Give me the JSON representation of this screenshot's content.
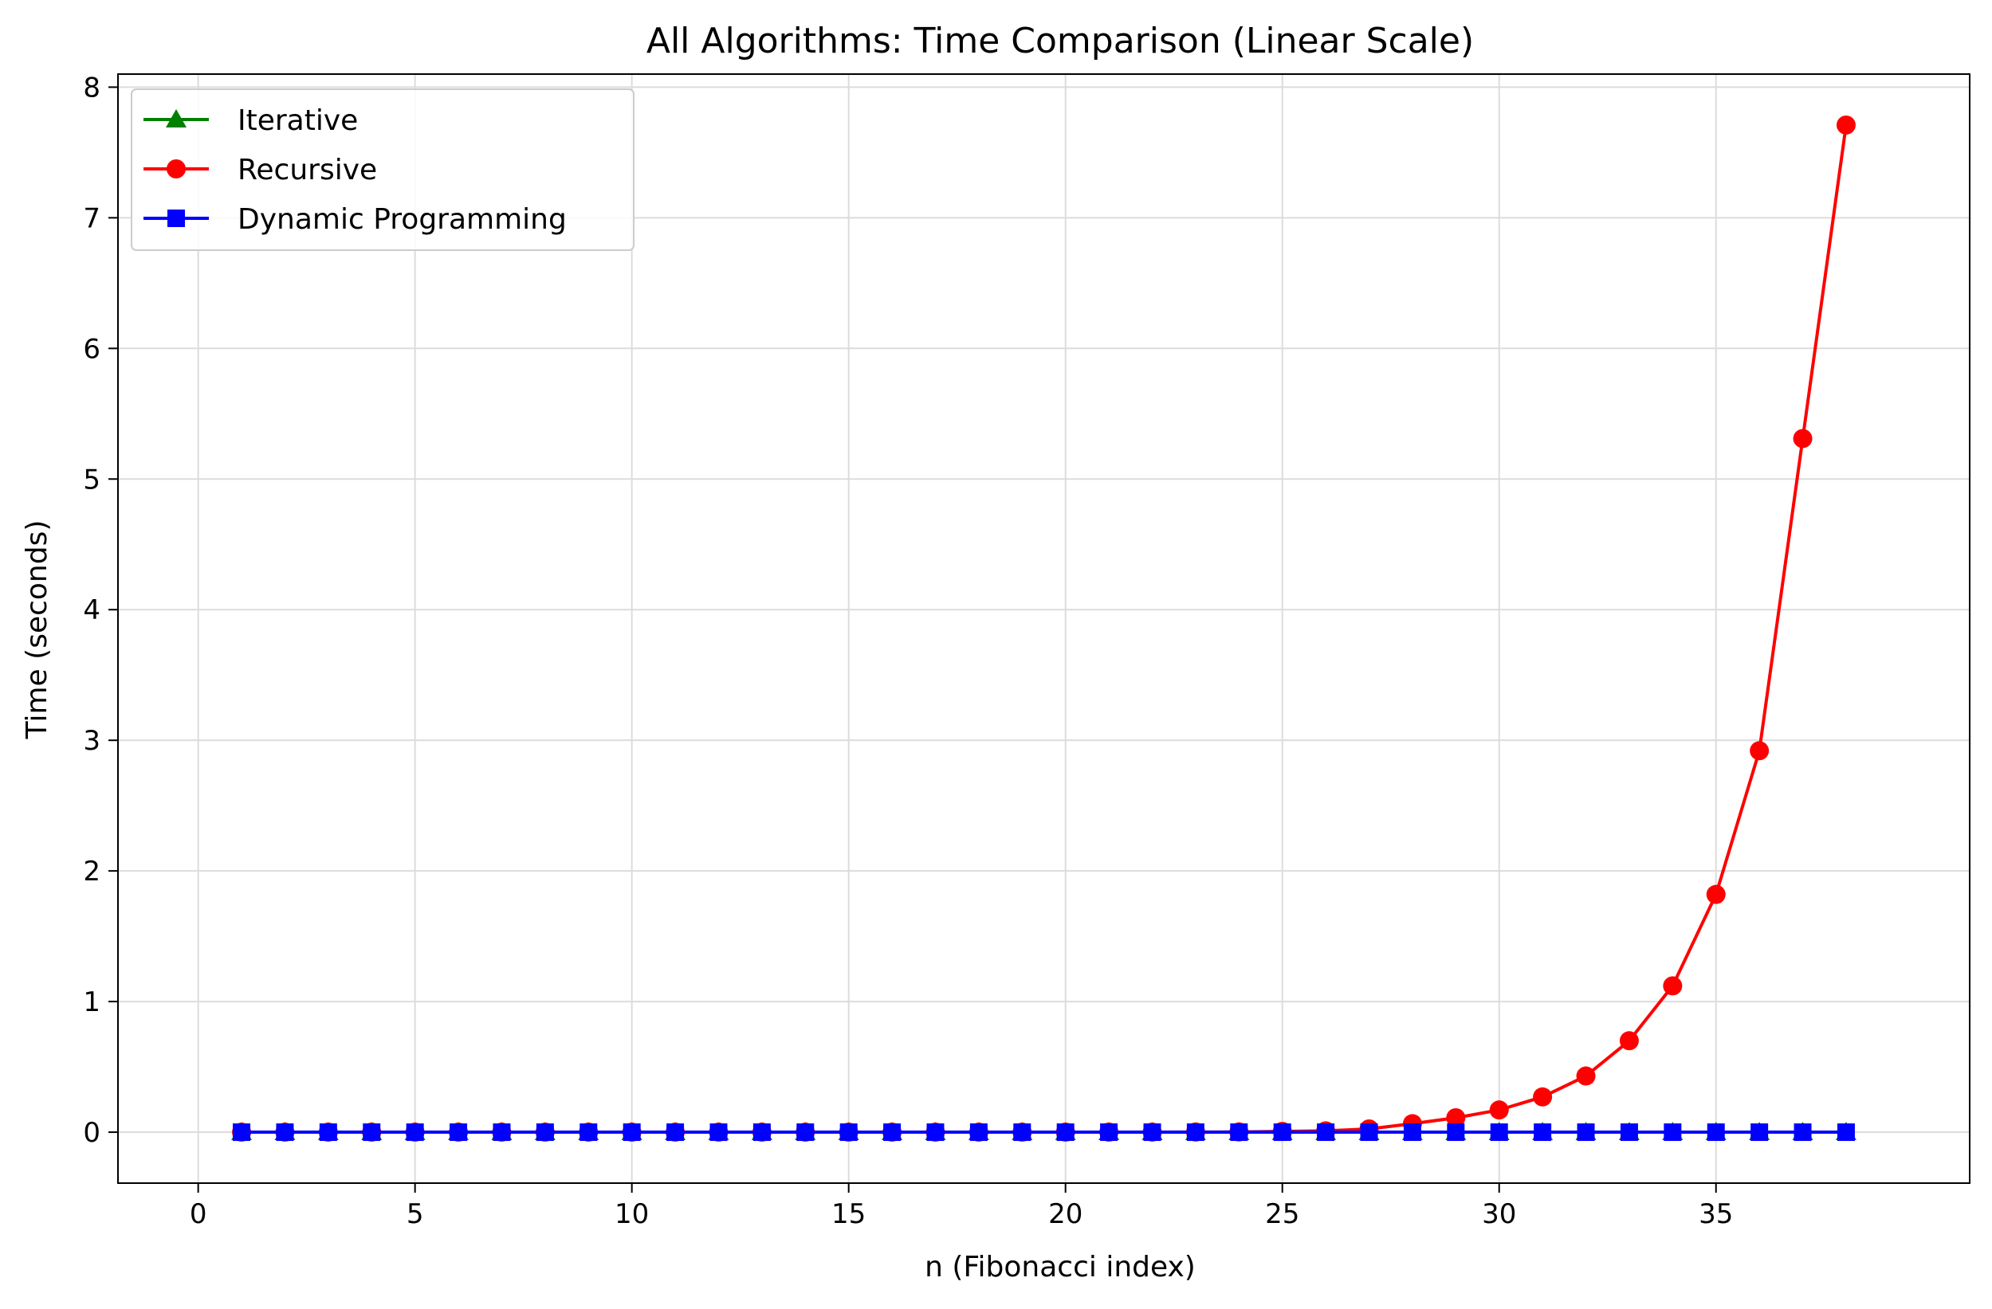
{
  "chart_data": {
    "type": "line",
    "title": "All Algorithms: Time Comparison (Linear Scale)",
    "xlabel": "n (Fibonacci index)",
    "ylabel": "Time (seconds)",
    "xlim": [
      -1.85,
      40.85
    ],
    "ylim": [
      -0.39,
      8.1
    ],
    "xticks": [
      0,
      5,
      10,
      15,
      20,
      25,
      30,
      35
    ],
    "yticks": [
      0,
      1,
      2,
      3,
      4,
      5,
      6,
      7,
      8
    ],
    "grid": true,
    "legend_position": "upper-left",
    "x": [
      1,
      2,
      3,
      4,
      5,
      6,
      7,
      8,
      9,
      10,
      11,
      12,
      13,
      14,
      15,
      16,
      17,
      18,
      19,
      20,
      21,
      22,
      23,
      24,
      25,
      26,
      27,
      28,
      29,
      30,
      31,
      32,
      33,
      34,
      35,
      36,
      37,
      38
    ],
    "series": [
      {
        "name": "Iterative",
        "color": "#008000",
        "marker": "triangle",
        "values": [
          0,
          0,
          0,
          0,
          0,
          0,
          0,
          0,
          0,
          0,
          0,
          0,
          0,
          0,
          0,
          0,
          0,
          0,
          0,
          0,
          0,
          0,
          0,
          0,
          0,
          0,
          0,
          0,
          0,
          0,
          0,
          0,
          0,
          0,
          0,
          0,
          0,
          0
        ]
      },
      {
        "name": "Recursive",
        "color": "#ff0000",
        "marker": "circle",
        "values": [
          0,
          0,
          0,
          0,
          0,
          0,
          0,
          0,
          0,
          0,
          0,
          0,
          0,
          0,
          0,
          0,
          0,
          0,
          0,
          0.0002,
          0.0004,
          0.0006,
          0.001,
          0.0016,
          0.006,
          0.01,
          0.025,
          0.065,
          0.11,
          0.17,
          0.27,
          0.43,
          0.7,
          1.12,
          1.82,
          2.92,
          5.31,
          7.71
        ]
      },
      {
        "name": "Dynamic Programming",
        "color": "#0000ff",
        "marker": "square",
        "values": [
          0,
          0,
          0,
          0,
          0,
          0,
          0,
          0,
          0,
          0,
          0,
          0,
          0,
          0,
          0,
          0,
          0,
          0,
          0,
          0,
          0,
          0,
          0,
          0,
          0,
          0,
          0,
          0,
          0,
          0,
          0,
          0,
          0,
          0,
          0,
          0,
          0,
          0
        ]
      }
    ]
  }
}
